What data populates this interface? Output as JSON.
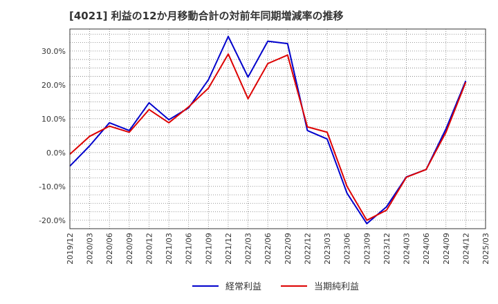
{
  "title": "[4021]  利益の12か月移動合計の対前年同期増減率の推移",
  "chart_data": {
    "type": "line",
    "title": "[4021]  利益の12か月移動合計の対前年同期増減率の推移",
    "xlabel": "",
    "ylabel": "",
    "ylim": [
      -22.5,
      36.5
    ],
    "yticks": [
      -20,
      -10,
      0,
      10,
      20,
      30
    ],
    "ytick_labels": [
      "-20.0%",
      "-10.0%",
      "0.0%",
      "10.0%",
      "20.0%",
      "30.0%"
    ],
    "categories": [
      "2019/12",
      "2020/03",
      "2020/06",
      "2020/09",
      "2020/12",
      "2021/03",
      "2021/06",
      "2021/09",
      "2021/12",
      "2022/03",
      "2022/06",
      "2022/09",
      "2022/12",
      "2023/03",
      "2023/06",
      "2023/09",
      "2023/12",
      "2024/03",
      "2024/06",
      "2024/09",
      "2024/12",
      "2025/03"
    ],
    "legend_position": "bottom",
    "series": [
      {
        "name": "経常利益",
        "color": "#0000cc",
        "values": [
          -4.0,
          2.0,
          8.8,
          6.5,
          14.7,
          9.7,
          13.2,
          21.5,
          34.3,
          22.3,
          32.9,
          32.2,
          6.5,
          4.0,
          -12.0,
          -21.0,
          -16.0,
          -7.2,
          -5.0,
          7.0,
          21.2,
          null
        ]
      },
      {
        "name": "当期純利益",
        "color": "#dd0000",
        "values": [
          -0.5,
          4.8,
          7.8,
          6.0,
          12.7,
          8.8,
          13.5,
          19.0,
          29.1,
          15.9,
          26.3,
          28.8,
          7.6,
          6.0,
          -10.0,
          -20.0,
          -17.0,
          -7.3,
          -5.0,
          6.0,
          20.8,
          null
        ]
      }
    ]
  }
}
